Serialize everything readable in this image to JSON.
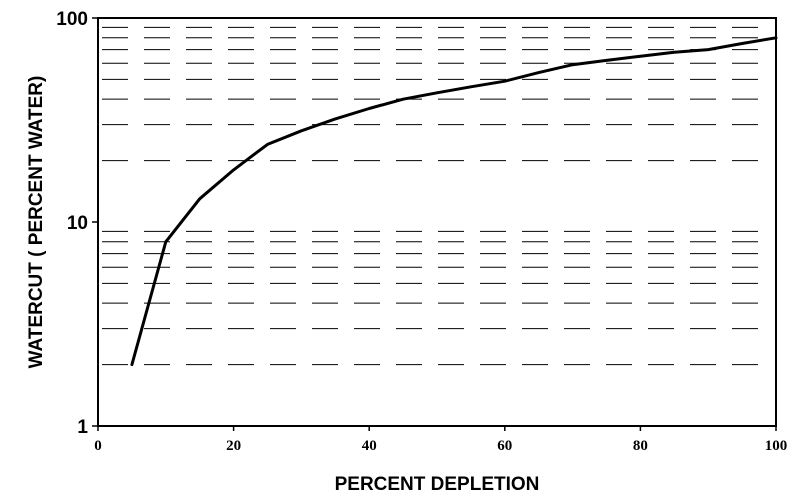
{
  "chart_data": {
    "type": "line",
    "title": "",
    "xlabel": "PERCENT DEPLETION",
    "ylabel": "WATERCUT ( PERCENT WATER)",
    "xlim": [
      0,
      100
    ],
    "ylim": [
      1,
      100
    ],
    "y_scale": "log",
    "grid": "dashed horizontal lines at each log-decade minor tick",
    "x_ticks": [
      "0",
      "20",
      "40",
      "60",
      "80",
      "100"
    ],
    "y_ticks": [
      "1",
      "10",
      "100"
    ],
    "series": [
      {
        "x": [
          5,
          10,
          15,
          20,
          25,
          30,
          35,
          40,
          45,
          50,
          55,
          60,
          65,
          70,
          75,
          80,
          85,
          90,
          95,
          100
        ],
        "y": [
          2,
          8,
          13,
          18,
          24,
          28,
          32,
          36,
          40,
          43,
          46,
          49,
          54,
          59,
          62,
          65,
          68,
          70,
          75,
          80
        ]
      }
    ]
  }
}
